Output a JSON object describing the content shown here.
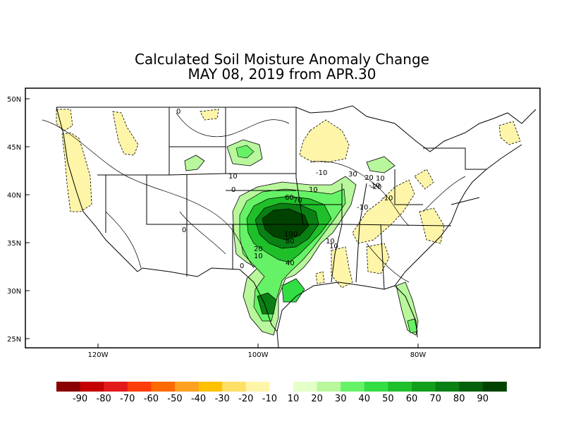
{
  "title": {
    "line1": "Calculated Soil Moisture Anomaly Change",
    "line2": "MAY 08, 2019 from APR.30"
  },
  "map": {
    "lat_ticks": [
      "50N",
      "45N",
      "40N",
      "35N",
      "30N",
      "25N"
    ],
    "lon_ticks": [
      "120W",
      "100W",
      "80W"
    ],
    "contour_labels": [
      "0",
      "0",
      "0",
      "0",
      "10",
      "10",
      "-10",
      "-10",
      "-10",
      "-10",
      "10",
      "20",
      "30",
      "-20",
      "60",
      "70",
      "100",
      "80",
      "10",
      "20",
      "40",
      "10",
      "10"
    ]
  },
  "colorbar": {
    "labels": [
      "-90",
      "-80",
      "-70",
      "-60",
      "-50",
      "-40",
      "-30",
      "-20",
      "-10",
      "10",
      "20",
      "30",
      "40",
      "50",
      "60",
      "70",
      "80",
      "90"
    ],
    "colors": [
      "#8b0000",
      "#c40000",
      "#e31a1c",
      "#ff3d0a",
      "#ff6a00",
      "#ffa020",
      "#ffc000",
      "#ffe066",
      "#fff5a8",
      "#ffffff",
      "#e5ffc8",
      "#b8f79c",
      "#66f266",
      "#33dd44",
      "#1fbf2a",
      "#12a01c",
      "#0a8014",
      "#05600c",
      "#024200"
    ]
  }
}
